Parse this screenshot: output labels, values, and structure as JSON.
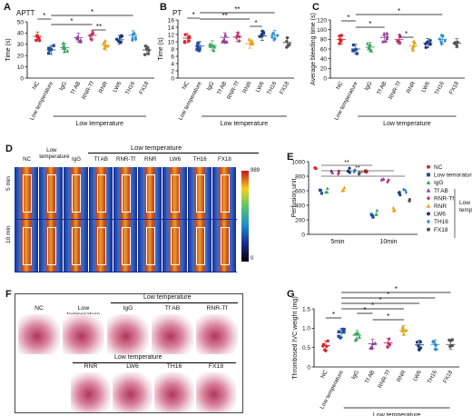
{
  "panels": {
    "A": {
      "letter": "A",
      "title": "APTT",
      "ylabel": "Time (s)",
      "yticks": [
        "0",
        "10",
        "20",
        "30",
        "40",
        "50"
      ],
      "cats": [
        "NC",
        "Low temperature",
        "IgG",
        "Tf AB",
        "RNR-Tf",
        "RNR",
        "LW6",
        "TH16",
        "FX18"
      ],
      "group_label": "Low temperature"
    },
    "B": {
      "letter": "B",
      "title": "PT",
      "ylabel": "Time (s)",
      "yticks": [
        "0",
        "2",
        "4",
        "6",
        "8",
        "10",
        "12",
        "14",
        "16"
      ],
      "cats": [
        "NC",
        "Low temperature",
        "IgG",
        "Tf AB",
        "RNR-Tf",
        "RNR",
        "LW6",
        "TH16",
        "FX18"
      ],
      "group_label": "Low temperature"
    },
    "C": {
      "letter": "C",
      "ylabel": "Average bleeding time (s)",
      "yticks": [
        "0",
        "20",
        "40",
        "60",
        "80",
        "100",
        "120"
      ],
      "cats": [
        "NC",
        "Low temperature",
        "IgG",
        "Tf AB",
        "RNR-Tf",
        "RNR",
        "LW6",
        "TH16",
        "FX18"
      ],
      "group_label": "Low temperature"
    },
    "D": {
      "letter": "D",
      "group_label": "Low temperature",
      "cols": [
        "NC",
        "Low temperature",
        "IgG",
        "Tf AB",
        "RNR-Tf",
        "RNR",
        "LW6",
        "TH16",
        "FX18"
      ],
      "rows": [
        "5 min",
        "10 min"
      ],
      "scale_max": "989",
      "scale_min": "0"
    },
    "E": {
      "letter": "E",
      "ylabel": "Perfusion unit",
      "yticks": [
        "0",
        "200",
        "400",
        "600",
        "800",
        "1000"
      ],
      "xticks": [
        "5min",
        "10min"
      ],
      "legend": [
        "NC",
        "Low temorature",
        "IgG",
        "Tf AB",
        "RNR-Tf",
        "RNR",
        "LW6",
        "TH16",
        "FX18"
      ],
      "legend_group": "Low temperature"
    },
    "F": {
      "letter": "F",
      "group_label_top": "Low temperature",
      "group_label_mid": "Low temperature",
      "row1": [
        "NC",
        "Low temperature",
        "IgG",
        "Tf AB",
        "RNR-Tf"
      ],
      "row2": [
        "RNR",
        "LW6",
        "TH16",
        "FX18"
      ]
    },
    "G": {
      "letter": "G",
      "ylabel": "Thrombosed IVC weight (mg)",
      "yticks": [
        "0",
        "0.5",
        "1.0",
        "1.5"
      ],
      "cats": [
        "NC",
        "Low temperature",
        "IgG",
        "Tf AB",
        "RNR-Tf",
        "RNR",
        "LW6",
        "TH16",
        "FX18"
      ],
      "group_label": "Low temperature"
    }
  },
  "significance": {
    "star": "*",
    "double": "**"
  },
  "colors": {
    "NC": "#d8262f",
    "Low": "#1f4e9c",
    "IgG": "#3aa55d",
    "TfAB": "#8e3f9b",
    "RNRTf": "#c0306f",
    "RNR": "#e0a51a",
    "LW6": "#1a3c78",
    "TH16": "#2f8ec8",
    "FX18": "#555555"
  },
  "chart_data": [
    {
      "panel": "A",
      "type": "scatter",
      "title": "APTT",
      "ylabel": "Time (s)",
      "ylim": [
        0,
        50
      ],
      "categories": [
        "NC",
        "Low temperature",
        "IgG",
        "Tf AB",
        "RNR-Tf",
        "RNR",
        "LW6",
        "TH16",
        "FX18"
      ],
      "means": [
        37,
        25,
        27,
        36,
        38,
        29,
        34,
        38,
        25
      ]
    },
    {
      "panel": "B",
      "type": "scatter",
      "title": "PT",
      "ylabel": "Time (s)",
      "ylim": [
        0,
        16
      ],
      "categories": [
        "NC",
        "Low temperature",
        "IgG",
        "Tf AB",
        "RNR-Tf",
        "RNR",
        "LW6",
        "TH16",
        "FX18"
      ],
      "means": [
        11,
        8.8,
        9,
        11.2,
        11.3,
        9.5,
        11.6,
        11.8,
        9.8
      ]
    },
    {
      "panel": "C",
      "type": "scatter",
      "ylabel": "Average bleeding time (s)",
      "ylim": [
        0,
        120
      ],
      "categories": [
        "NC",
        "Low temperature",
        "IgG",
        "Tf AB",
        "RNR-Tf",
        "RNR",
        "LW6",
        "TH16",
        "FX18"
      ],
      "means": [
        80,
        60,
        64,
        84,
        80,
        66,
        72,
        80,
        72
      ]
    },
    {
      "panel": "E",
      "type": "scatter",
      "ylabel": "Perfusion unit",
      "ylim": [
        0,
        1000
      ],
      "x": [
        "5min",
        "10min"
      ],
      "series": [
        {
          "name": "NC",
          "values": [
            900,
            880
          ]
        },
        {
          "name": "Low temorature",
          "values": [
            580,
            260
          ]
        },
        {
          "name": "IgG",
          "values": [
            610,
            300
          ]
        },
        {
          "name": "Tf AB",
          "values": [
            870,
            750
          ]
        },
        {
          "name": "RNR-Tf",
          "values": [
            860,
            730
          ]
        },
        {
          "name": "RNR",
          "values": [
            620,
            340
          ]
        },
        {
          "name": "LW6",
          "values": [
            880,
            560
          ]
        },
        {
          "name": "TH16",
          "values": [
            870,
            600
          ]
        },
        {
          "name": "FX18",
          "values": [
            850,
            480
          ]
        }
      ]
    },
    {
      "panel": "G",
      "type": "scatter",
      "ylabel": "Thrombosed IVC weight (mg)",
      "ylim": [
        0,
        1.5
      ],
      "categories": [
        "NC",
        "Low temperature",
        "IgG",
        "Tf AB",
        "RNR-Tf",
        "RNR",
        "LW6",
        "TH16",
        "FX18"
      ],
      "means": [
        0.55,
        0.88,
        0.82,
        0.6,
        0.62,
        0.95,
        0.57,
        0.58,
        0.58
      ]
    }
  ]
}
